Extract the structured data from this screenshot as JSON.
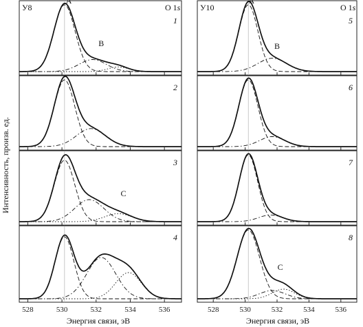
{
  "figure": {
    "ylabel": "Интенсивность, произв. ед.",
    "xlabel": "Энергия связи, эВ",
    "left_column_label": "У8",
    "right_column_label": "У10",
    "core_level_label_prefix": "O 1",
    "core_level_label_suffix": "s"
  },
  "chart_data": [
    {
      "type": "line",
      "panel": "1",
      "column_label": "У8",
      "xlim": [
        527.5,
        537
      ],
      "xticks": [
        528,
        530,
        532,
        534,
        536
      ],
      "series": [
        {
          "role": "envelope",
          "peaks": [
            {
              "center": 530.15,
              "sigma": 0.62,
              "amp": 1.0
            },
            {
              "center": 531.8,
              "sigma": 0.8,
              "amp": 0.18
            },
            {
              "center": 533.3,
              "sigma": 0.6,
              "amp": 0.07
            }
          ]
        },
        {
          "role": "component",
          "label": "A",
          "style": "dashed",
          "peaks": [
            {
              "center": 530.15,
              "sigma": 0.62,
              "amp": 1.0
            }
          ]
        },
        {
          "role": "component",
          "label": "B",
          "style": "dashdot",
          "peaks": [
            {
              "center": 531.8,
              "sigma": 0.8,
              "amp": 0.18
            }
          ]
        },
        {
          "role": "component",
          "style": "dotted",
          "peaks": [
            {
              "center": 533.3,
              "sigma": 0.6,
              "amp": 0.07
            }
          ]
        }
      ],
      "peak_labels": [
        {
          "text": "A",
          "x": 530.4,
          "y": 1.02
        },
        {
          "text": "B",
          "x": 532.3,
          "y": 0.38
        }
      ]
    },
    {
      "type": "line",
      "panel": "2",
      "column_label": "У8",
      "xlim": [
        527.5,
        537
      ],
      "xticks": [
        528,
        530,
        532,
        534,
        536
      ],
      "series": [
        {
          "role": "envelope",
          "peaks": [
            {
              "center": 530.15,
              "sigma": 0.6,
              "amp": 1.0
            },
            {
              "center": 531.7,
              "sigma": 0.85,
              "amp": 0.27
            }
          ]
        },
        {
          "role": "component",
          "style": "dashed",
          "peaks": [
            {
              "center": 530.15,
              "sigma": 0.6,
              "amp": 1.0
            }
          ]
        },
        {
          "role": "component",
          "style": "dashdot",
          "peaks": [
            {
              "center": 531.7,
              "sigma": 0.85,
              "amp": 0.27
            }
          ]
        }
      ],
      "peak_labels": []
    },
    {
      "type": "line",
      "panel": "3",
      "column_label": "У8",
      "xlim": [
        527.5,
        537
      ],
      "xticks": [
        528,
        530,
        532,
        534,
        536
      ],
      "series": [
        {
          "role": "envelope",
          "peaks": [
            {
              "center": 530.15,
              "sigma": 0.6,
              "amp": 0.92
            },
            {
              "center": 531.6,
              "sigma": 0.85,
              "amp": 0.33
            },
            {
              "center": 533.3,
              "sigma": 0.8,
              "amp": 0.12
            }
          ]
        },
        {
          "role": "component",
          "style": "dashed",
          "peaks": [
            {
              "center": 530.15,
              "sigma": 0.6,
              "amp": 0.92
            }
          ]
        },
        {
          "role": "component",
          "style": "dashdot",
          "peaks": [
            {
              "center": 531.6,
              "sigma": 0.85,
              "amp": 0.33
            }
          ]
        },
        {
          "role": "component",
          "style": "dotted",
          "peaks": [
            {
              "center": 533.3,
              "sigma": 0.8,
              "amp": 0.12
            }
          ]
        }
      ],
      "peak_labels": [
        {
          "text": "C",
          "x": 533.6,
          "y": 0.38
        }
      ]
    },
    {
      "type": "line",
      "panel": "4",
      "column_label": "У8",
      "xlim": [
        527.5,
        537
      ],
      "xticks": [
        528,
        530,
        532,
        534,
        536
      ],
      "series": [
        {
          "role": "envelope",
          "peaks": [
            {
              "center": 530.15,
              "sigma": 0.55,
              "amp": 0.9
            },
            {
              "center": 532.3,
              "sigma": 0.85,
              "amp": 0.6
            },
            {
              "center": 533.9,
              "sigma": 0.75,
              "amp": 0.38
            }
          ]
        },
        {
          "role": "component",
          "style": "dashed",
          "peaks": [
            {
              "center": 530.15,
              "sigma": 0.55,
              "amp": 0.9
            }
          ]
        },
        {
          "role": "component",
          "style": "dashdot",
          "peaks": [
            {
              "center": 532.3,
              "sigma": 0.85,
              "amp": 0.6
            }
          ]
        },
        {
          "role": "component",
          "style": "dotted",
          "peaks": [
            {
              "center": 533.9,
              "sigma": 0.75,
              "amp": 0.38
            }
          ]
        }
      ],
      "peak_labels": []
    },
    {
      "type": "line",
      "panel": "5",
      "column_label": "У10",
      "xlim": [
        527,
        537
      ],
      "xticks": [
        528,
        530,
        532,
        534,
        536
      ],
      "series": [
        {
          "role": "envelope",
          "peaks": [
            {
              "center": 530.2,
              "sigma": 0.6,
              "amp": 1.0
            },
            {
              "center": 531.7,
              "sigma": 0.9,
              "amp": 0.2
            }
          ]
        },
        {
          "role": "component",
          "label": "A",
          "style": "dashed",
          "peaks": [
            {
              "center": 530.2,
              "sigma": 0.6,
              "amp": 1.0
            }
          ]
        },
        {
          "role": "component",
          "label": "B",
          "style": "dashdot",
          "peaks": [
            {
              "center": 531.7,
              "sigma": 0.9,
              "amp": 0.2
            }
          ]
        }
      ],
      "peak_labels": [
        {
          "text": "A",
          "x": 530.4,
          "y": 1.02
        },
        {
          "text": "B",
          "x": 532.0,
          "y": 0.34
        }
      ]
    },
    {
      "type": "line",
      "panel": "6",
      "column_label": "У10",
      "xlim": [
        527,
        537
      ],
      "xticks": [
        528,
        530,
        532,
        534,
        536
      ],
      "series": [
        {
          "role": "envelope",
          "peaks": [
            {
              "center": 530.2,
              "sigma": 0.6,
              "amp": 1.0
            },
            {
              "center": 531.7,
              "sigma": 0.8,
              "amp": 0.15
            }
          ]
        },
        {
          "role": "component",
          "style": "dashed",
          "peaks": [
            {
              "center": 530.2,
              "sigma": 0.6,
              "amp": 1.0
            }
          ]
        },
        {
          "role": "component",
          "style": "dashdot",
          "peaks": [
            {
              "center": 531.7,
              "sigma": 0.8,
              "amp": 0.15
            }
          ]
        }
      ],
      "peak_labels": []
    },
    {
      "type": "line",
      "panel": "7",
      "column_label": "У10",
      "xlim": [
        527,
        537
      ],
      "xticks": [
        528,
        530,
        532,
        534,
        536
      ],
      "series": [
        {
          "role": "envelope",
          "peaks": [
            {
              "center": 530.2,
              "sigma": 0.58,
              "amp": 1.0
            },
            {
              "center": 531.6,
              "sigma": 0.75,
              "amp": 0.1
            }
          ]
        },
        {
          "role": "component",
          "style": "dashed",
          "peaks": [
            {
              "center": 530.2,
              "sigma": 0.58,
              "amp": 1.0
            }
          ]
        },
        {
          "role": "component",
          "style": "dashdot",
          "peaks": [
            {
              "center": 531.6,
              "sigma": 0.75,
              "amp": 0.1
            }
          ]
        }
      ],
      "peak_labels": []
    },
    {
      "type": "line",
      "panel": "8",
      "column_label": "У10",
      "xlim": [
        527,
        537
      ],
      "xticks": [
        528,
        530,
        532,
        534,
        536
      ],
      "series": [
        {
          "role": "envelope",
          "peaks": [
            {
              "center": 530.2,
              "sigma": 0.7,
              "amp": 1.0
            },
            {
              "center": 531.7,
              "sigma": 0.8,
              "amp": 0.12
            },
            {
              "center": 532.4,
              "sigma": 0.7,
              "amp": 0.14
            }
          ]
        },
        {
          "role": "component",
          "style": "dashed",
          "peaks": [
            {
              "center": 530.2,
              "sigma": 0.7,
              "amp": 1.0
            }
          ]
        },
        {
          "role": "component",
          "style": "dashdot",
          "peaks": [
            {
              "center": 531.7,
              "sigma": 0.8,
              "amp": 0.12
            }
          ]
        },
        {
          "role": "component",
          "style": "dotted",
          "peaks": [
            {
              "center": 532.4,
              "sigma": 0.7,
              "amp": 0.14
            }
          ]
        }
      ],
      "peak_labels": [
        {
          "text": "C",
          "x": 532.2,
          "y": 0.42
        }
      ]
    }
  ]
}
